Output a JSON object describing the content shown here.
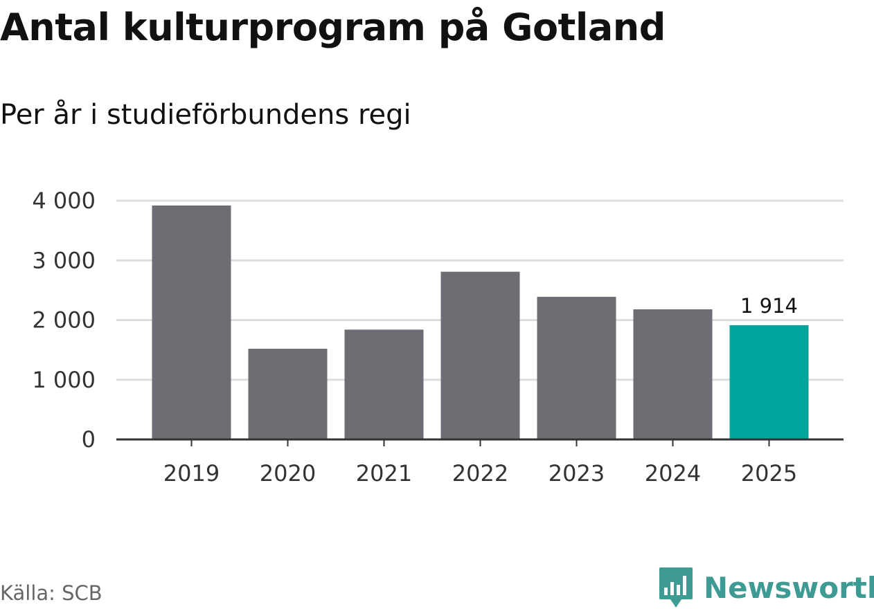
{
  "title": "Antal kulturprogram på Gotland",
  "subtitle": "Per år i studieförbundens regi",
  "source": "Källa: SCB",
  "brand": {
    "name": "Newsworthy",
    "icon": "newsworthy-logo-icon",
    "color": "#3d9b93"
  },
  "colors": {
    "bar": "#6d6d73",
    "highlight": "#00a59b",
    "grid": "#dddddd",
    "axis": "#333333"
  },
  "chart_data": {
    "type": "bar",
    "categories": [
      "2019",
      "2020",
      "2021",
      "2022",
      "2023",
      "2024",
      "2025"
    ],
    "values": [
      3920,
      1520,
      1840,
      2810,
      2390,
      2180,
      1914
    ],
    "highlight_index": 6,
    "value_labels": [
      {
        "index": 6,
        "text": "1 914"
      }
    ],
    "yticks": [
      0,
      1000,
      2000,
      3000,
      4000
    ],
    "ytick_labels": [
      "0",
      "1 000",
      "2 000",
      "3 000",
      "4 000"
    ],
    "ylim": [
      0,
      4000
    ],
    "grid": true,
    "legend": "none",
    "xlabel": "",
    "ylabel": ""
  }
}
